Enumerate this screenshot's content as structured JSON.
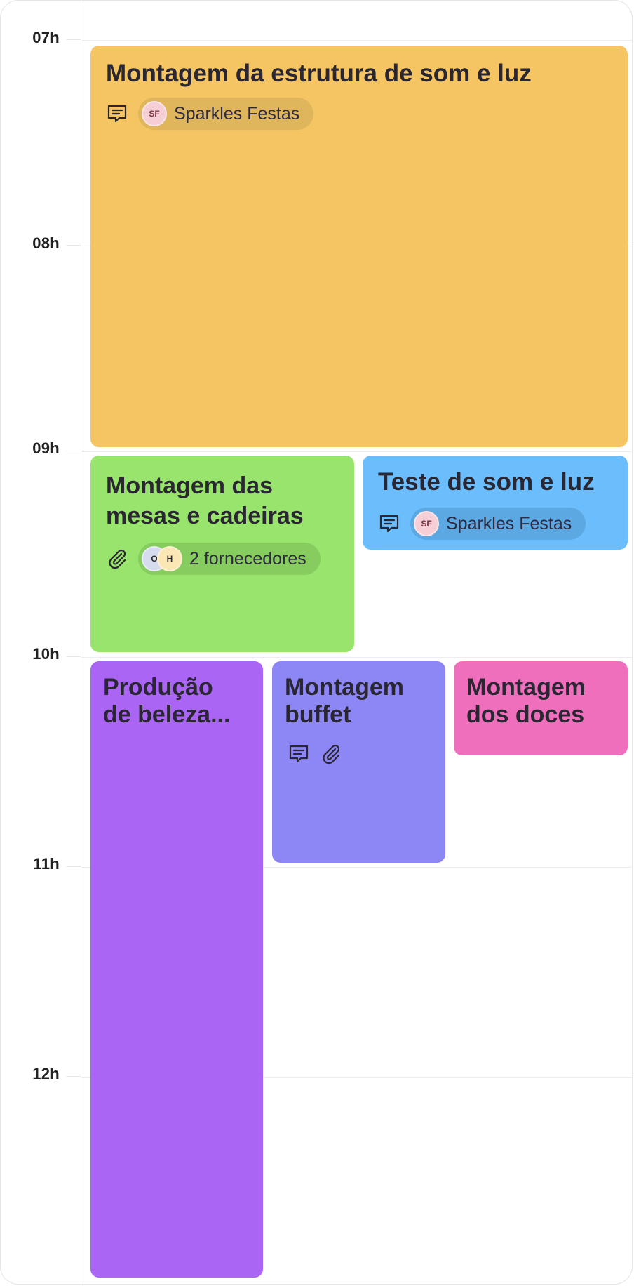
{
  "hours": [
    "07h",
    "08h",
    "09h",
    "10h",
    "11h",
    "12h"
  ],
  "colors": {
    "yellow": "#f5c563",
    "green": "#98e46c",
    "blue": "#6cbdfb",
    "purple": "#ab65f5",
    "indigo": "#8c87f5",
    "pink": "#ef6fbc"
  },
  "events": {
    "sound_light_setup": {
      "title": "Montagem da estrutura de som e luz",
      "icon": "comment-icon",
      "supplier": {
        "initials": "SF",
        "name": "Sparkles Festas"
      }
    },
    "tables_chairs": {
      "title_line1": "Montagem das",
      "title_line2": "mesas e cadeiras",
      "icon": "paperclip-icon",
      "suppliers": {
        "initials": [
          "O",
          "H"
        ],
        "label": "2 fornecedores"
      }
    },
    "sound_light_test": {
      "title": "Teste de som e luz",
      "icon": "comment-icon",
      "supplier": {
        "initials": "SF",
        "name": "Sparkles Festas"
      }
    },
    "beauty": {
      "title_line1": "Produção",
      "title_line2": "de beleza..."
    },
    "buffet": {
      "title_line1": "Montagem",
      "title_line2": "buffet",
      "icons": [
        "comment-icon",
        "paperclip-icon"
      ]
    },
    "sweets": {
      "title_line1": "Montagem",
      "title_line2": "dos doces"
    }
  }
}
